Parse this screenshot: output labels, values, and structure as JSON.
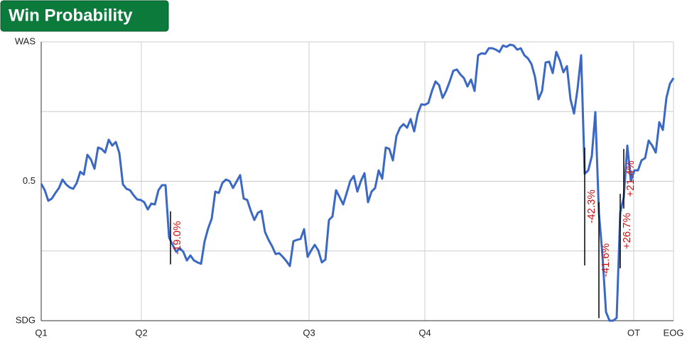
{
  "chart_data": {
    "type": "line",
    "title": "Win Probability",
    "x": [
      0,
      1,
      2,
      3,
      4,
      5,
      6,
      7,
      8,
      9,
      10,
      11,
      12,
      13,
      14,
      15,
      16,
      17,
      18,
      19,
      20,
      21,
      22,
      23,
      24,
      25,
      26,
      27,
      28,
      29,
      30,
      31,
      32,
      33,
      34,
      35,
      36,
      37,
      38,
      39,
      40,
      41,
      42,
      43,
      44,
      45,
      46,
      47,
      48,
      49,
      50,
      51,
      52,
      53,
      54,
      55,
      56,
      57,
      58,
      59,
      60,
      61,
      62,
      63,
      64,
      65,
      66,
      67,
      68,
      69,
      70,
      71,
      72,
      73,
      74,
      75,
      76,
      77,
      78,
      79,
      80,
      81,
      82,
      83,
      84,
      85,
      86,
      87,
      88,
      89,
      90,
      91,
      92,
      93,
      94,
      95,
      96,
      97,
      98,
      99,
      100,
      101,
      102,
      103,
      104,
      105,
      106,
      107,
      108,
      109,
      110,
      111,
      112,
      113,
      114,
      115,
      116,
      117,
      118,
      119,
      120,
      121,
      122,
      123,
      124,
      125,
      126,
      127,
      128,
      129,
      130,
      131,
      132,
      133,
      134,
      135,
      136,
      137,
      138,
      139,
      140,
      141,
      142,
      143,
      144,
      145,
      146,
      147,
      148,
      149,
      150,
      151,
      152,
      153,
      154,
      155,
      156,
      157,
      158,
      159,
      160,
      161,
      162,
      163,
      164,
      165,
      166,
      167,
      168,
      169,
      170,
      171,
      172,
      173,
      174,
      175,
      176,
      177,
      178
    ],
    "values": [
      0.491,
      0.468,
      0.43,
      0.438,
      0.458,
      0.476,
      0.506,
      0.489,
      0.478,
      0.473,
      0.494,
      0.534,
      0.524,
      0.595,
      0.578,
      0.545,
      0.621,
      0.616,
      0.603,
      0.649,
      0.628,
      0.641,
      0.601,
      0.489,
      0.473,
      0.468,
      0.45,
      0.435,
      0.433,
      0.425,
      0.399,
      0.42,
      0.417,
      0.468,
      0.486,
      0.486,
      0.298,
      0.272,
      0.247,
      0.26,
      0.247,
      0.216,
      0.234,
      0.216,
      0.209,
      0.204,
      0.285,
      0.331,
      0.366,
      0.463,
      0.458,
      0.494,
      0.506,
      0.501,
      0.476,
      0.499,
      0.522,
      0.438,
      0.433,
      0.394,
      0.361,
      0.387,
      0.394,
      0.318,
      0.29,
      0.267,
      0.239,
      0.242,
      0.229,
      0.214,
      0.196,
      0.285,
      0.29,
      0.293,
      0.328,
      0.229,
      0.252,
      0.272,
      0.252,
      0.209,
      0.219,
      0.361,
      0.374,
      0.468,
      0.443,
      0.417,
      0.458,
      0.501,
      0.519,
      0.463,
      0.501,
      0.529,
      0.425,
      0.463,
      0.476,
      0.539,
      0.509,
      0.621,
      0.616,
      0.575,
      0.662,
      0.692,
      0.705,
      0.692,
      0.723,
      0.679,
      0.743,
      0.776,
      0.774,
      0.781,
      0.824,
      0.858,
      0.845,
      0.799,
      0.824,
      0.858,
      0.896,
      0.901,
      0.883,
      0.87,
      0.84,
      0.865,
      0.824,
      0.952,
      0.959,
      0.957,
      0.977,
      0.977,
      0.972,
      0.964,
      0.987,
      0.982,
      0.99,
      0.987,
      0.972,
      0.977,
      0.952,
      0.941,
      0.921,
      0.875,
      0.794,
      0.824,
      0.926,
      0.929,
      0.888,
      0.964,
      0.934,
      0.891,
      0.913,
      0.794,
      0.743,
      0.832,
      0.952,
      0.527,
      0.539,
      0.59,
      0.748,
      0.387,
      0.234,
      0.031,
      0,
      0,
      0.01,
      0.387,
      0.443,
      0.628,
      0.501,
      0.539,
      0.539,
      0.575,
      0.583,
      0.646,
      0.628,
      0.603,
      0.712,
      0.684,
      0.799,
      0.85,
      0.87
    ],
    "color": "#3a68c4",
    "xlim": [
      0,
      178
    ],
    "xticks": [
      {
        "value": 0,
        "label": "Q1"
      },
      {
        "value": 28.2,
        "label": "Q2"
      },
      {
        "value": 75.4,
        "label": "Q3"
      },
      {
        "value": 108,
        "label": "Q4"
      },
      {
        "value": 166.8,
        "label": "OT"
      },
      {
        "value": 178,
        "label": "EOG"
      }
    ],
    "ylim": [
      0,
      1
    ],
    "yticks": [
      {
        "value": 0,
        "label": "SDG"
      },
      {
        "value": 0.25,
        "label": null
      },
      {
        "value": 0.5,
        "label": "0.5"
      },
      {
        "value": 0.75,
        "label": null
      },
      {
        "value": 1,
        "label": "WAS"
      }
    ],
    "grid": true,
    "annotations": [
      {
        "x": 36.4,
        "y": 0.392,
        "value": -19.0,
        "label": "-19.0%"
      },
      {
        "x": 153,
        "y": 0.621,
        "value": -42.3,
        "label": "-42.3%"
      },
      {
        "x": 157,
        "y": 0.425,
        "value": -41.6,
        "label": "-41.6%"
      },
      {
        "x": 163,
        "y": 0.188,
        "value": 26.7,
        "label": "+26.7%"
      },
      {
        "x": 164,
        "y": 0.402,
        "value": 21.4,
        "label": "+21.4%"
      }
    ]
  }
}
